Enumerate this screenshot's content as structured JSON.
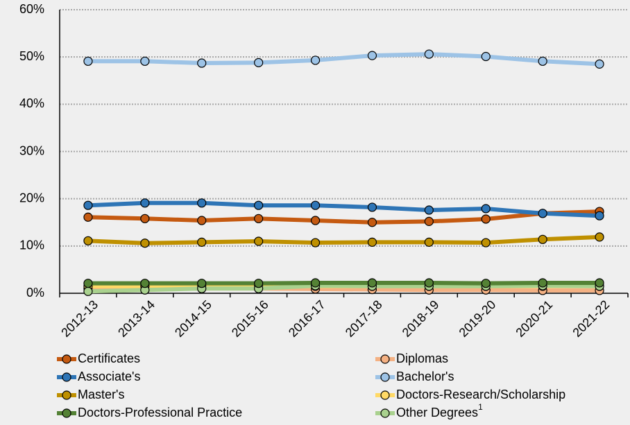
{
  "chart_data": {
    "type": "line",
    "categories": [
      "2012-13",
      "2013-14",
      "2014-15",
      "2015-16",
      "2016-17",
      "2017-18",
      "2018-19",
      "2019-20",
      "2020-21",
      "2021-22"
    ],
    "series": [
      {
        "name": "Certificates",
        "color": "#c55a11",
        "values": [
          16.1,
          15.8,
          15.4,
          15.8,
          15.4,
          15.0,
          15.2,
          15.7,
          16.9,
          17.3
        ]
      },
      {
        "name": "Diplomas",
        "color": "#f4b183",
        "values": [
          1.0,
          1.0,
          1.0,
          1.0,
          0.9,
          0.8,
          0.7,
          0.7,
          0.6,
          0.6
        ]
      },
      {
        "name": "Associate's",
        "color": "#2e75b6",
        "values": [
          18.6,
          19.1,
          19.1,
          18.6,
          18.6,
          18.2,
          17.6,
          17.9,
          16.9,
          16.4
        ]
      },
      {
        "name": "Bachelor's",
        "color": "#9dc3e6",
        "values": [
          49.1,
          49.1,
          48.7,
          48.8,
          49.3,
          50.3,
          50.6,
          50.1,
          49.1,
          48.5
        ]
      },
      {
        "name": "Master's",
        "color": "#bf9000",
        "values": [
          11.1,
          10.6,
          10.8,
          11.0,
          10.7,
          10.8,
          10.8,
          10.7,
          11.4,
          11.9
        ]
      },
      {
        "name": "Doctors-Research/Scholarship",
        "color": "#ffd966",
        "values": [
          1.5,
          1.5,
          1.5,
          1.5,
          1.5,
          1.5,
          1.5,
          1.5,
          1.5,
          1.5
        ]
      },
      {
        "name": "Doctors-Professional Practice",
        "color": "#548235",
        "values": [
          2.1,
          2.1,
          2.1,
          2.1,
          2.2,
          2.2,
          2.2,
          2.1,
          2.2,
          2.2
        ]
      },
      {
        "name": "Other Degrees",
        "name_note": "1",
        "color": "#a9d18e",
        "values": [
          0.4,
          0.7,
          1.0,
          1.0,
          1.6,
          1.5,
          1.5,
          1.5,
          1.6,
          1.5
        ]
      }
    ],
    "ylim": [
      0,
      60
    ],
    "yticks": [
      {
        "value": 0,
        "label": "0%"
      },
      {
        "value": 10,
        "label": "10%"
      },
      {
        "value": 20,
        "label": "20%"
      },
      {
        "value": 30,
        "label": "30%"
      },
      {
        "value": 40,
        "label": "40%"
      },
      {
        "value": 50,
        "label": "50%"
      },
      {
        "value": 60,
        "label": "60%"
      }
    ],
    "grid": true
  }
}
